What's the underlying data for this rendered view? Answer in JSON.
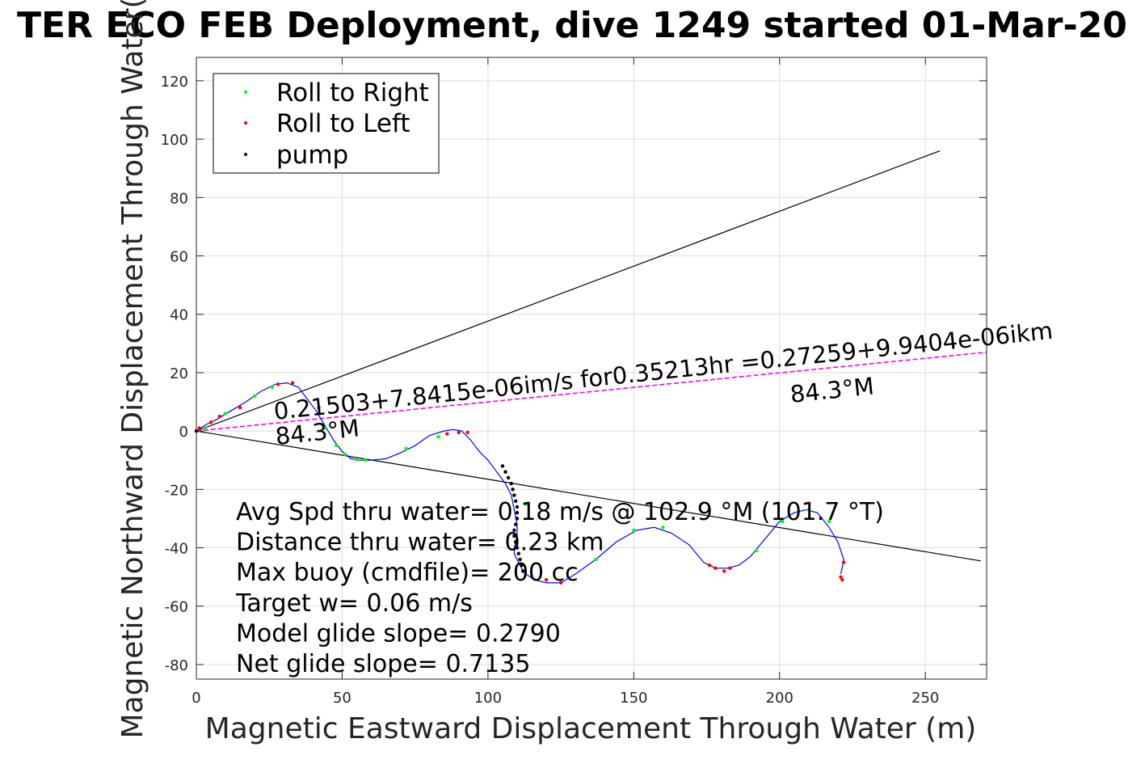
{
  "chart_data": {
    "type": "line",
    "title": "TER ECO FEB Deployment, dive 1249 started 01-Mar-20",
    "xlabel": "Magnetic Eastward Displacement Through Water (m)",
    "ylabel": "Magnetic Northward Displacement Through Water(",
    "xlim": [
      0,
      271
    ],
    "ylim": [
      -85,
      128
    ],
    "xticks": [
      0,
      50,
      100,
      150,
      200,
      250
    ],
    "yticks": [
      120,
      100,
      80,
      60,
      40,
      20,
      0,
      -20,
      -40,
      -60,
      -80
    ],
    "grid": true,
    "legend_position": "top-left",
    "legend": [
      {
        "label": "Roll to Right",
        "color": "#00ff00"
      },
      {
        "label": "Roll to Left",
        "color": "#ff0000"
      },
      {
        "label": "pump",
        "color": "#000000"
      }
    ],
    "track": {
      "color": "#0000ff",
      "x": [
        0,
        3,
        7,
        12,
        17,
        22,
        27,
        31,
        35,
        38,
        41,
        44,
        47,
        50,
        53,
        56,
        60,
        65,
        70,
        75,
        80,
        85,
        88,
        91,
        94,
        97,
        100,
        103,
        106,
        108,
        109,
        110,
        110,
        109,
        109,
        110,
        111,
        112,
        113,
        116,
        120,
        125,
        130,
        137,
        144,
        151,
        157,
        163,
        169,
        174,
        178,
        182,
        186,
        190,
        195,
        200,
        205,
        209,
        213,
        217,
        220,
        222,
        221
      ],
      "y": [
        0,
        2,
        4,
        7,
        10,
        13.5,
        16,
        16.5,
        15,
        11,
        7,
        2,
        -3,
        -7,
        -9.5,
        -10,
        -10,
        -9.5,
        -7.5,
        -5,
        -1.5,
        0,
        0.5,
        0,
        -3,
        -7,
        -10,
        -14,
        -18,
        -22,
        -27,
        -32,
        -36,
        -40,
        -42,
        -44,
        -46,
        -48,
        -49,
        -51,
        -52,
        -52,
        -49,
        -44,
        -38,
        -34,
        -33,
        -35,
        -39,
        -45,
        -47,
        -47,
        -46,
        -43,
        -37,
        -31,
        -28,
        -27,
        -28,
        -33,
        -38,
        -44,
        -49
      ]
    },
    "roll_right": {
      "x": [
        3,
        10,
        20,
        26,
        44,
        48,
        51,
        55,
        58,
        72,
        83,
        113,
        137,
        150,
        160,
        178,
        192,
        201,
        210,
        217
      ],
      "y": [
        1,
        6,
        12,
        15,
        1,
        -5,
        -8,
        -9.8,
        -10,
        -6,
        -2,
        -25,
        -44,
        -34,
        -33,
        -47,
        -41,
        -31,
        -27,
        -31
      ]
    },
    "roll_left": {
      "x": [
        1,
        5,
        8,
        15,
        28,
        33,
        42,
        86,
        90,
        93,
        120,
        125,
        176,
        178,
        181,
        183,
        221,
        221.5,
        222
      ],
      "y": [
        1,
        3,
        5,
        8,
        16,
        16.5,
        8,
        -1,
        -0.5,
        -0.5,
        -51,
        -52,
        -46,
        -47,
        -48,
        -47,
        -50,
        -51,
        -45
      ]
    },
    "pump": {
      "x": [
        0,
        105,
        106,
        107,
        108,
        108.5,
        109,
        109.5,
        110,
        110,
        110,
        109.5,
        109,
        109,
        109.5,
        110,
        110.5,
        111,
        111.5,
        112
      ],
      "y": [
        0,
        -12,
        -14,
        -16,
        -18,
        -20,
        -22,
        -24,
        -26,
        -28,
        -30,
        -32,
        -34,
        -36,
        -38,
        -40,
        -42,
        -44,
        -46,
        -48
      ]
    },
    "reference_lines": [
      {
        "name": "upper",
        "color": "#000000",
        "x": [
          0,
          255
        ],
        "y": [
          0,
          96
        ]
      },
      {
        "name": "lower",
        "color": "#000000",
        "x": [
          0,
          269
        ],
        "y": [
          0,
          -44.5
        ]
      },
      {
        "name": "mean",
        "color": "#ff00ff",
        "dashed": true,
        "x": [
          0,
          271
        ],
        "y": [
          0,
          27
        ]
      }
    ],
    "annotations": {
      "speed_line": "0.21503+7.8415e-06im/s for0.35213hr =0.27259+9.9404e-06ikm",
      "heading_start": "84.3°M",
      "heading_end": "84.3°M",
      "stats": [
        "Avg Spd thru water= 0.18 m/s @ 102.9 °M (101.7 °T)",
        "Distance thru water= 0.23 km",
        "Max buoy (cmdfile)= 200 cc",
        "Target w= 0.06 m/s",
        "Model glide slope= 0.2790",
        "Net glide slope= 0.7135"
      ]
    }
  }
}
